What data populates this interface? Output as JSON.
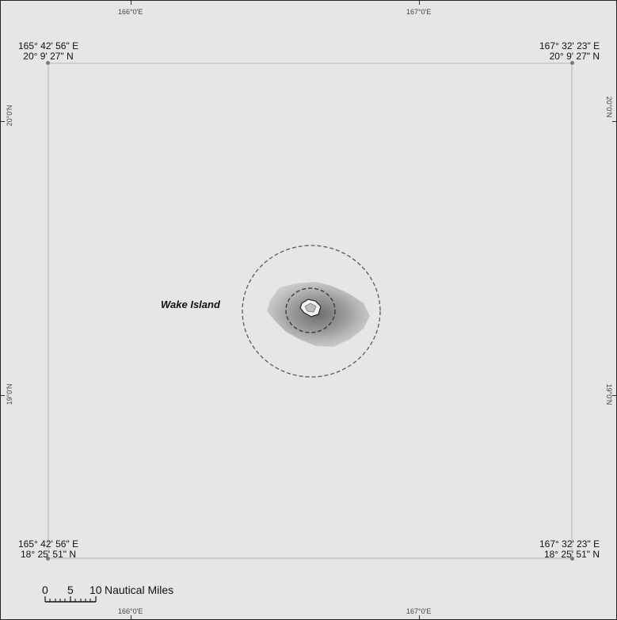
{
  "top_ticks": [
    {
      "label": "166°0'E"
    },
    {
      "label": "167°0'E"
    }
  ],
  "bottom_ticks": [
    {
      "label": "166°0'E"
    },
    {
      "label": "167°0'E"
    }
  ],
  "left_ticks": [
    {
      "label": "20°0'N"
    },
    {
      "label": "19°0'N"
    }
  ],
  "right_ticks": [
    {
      "label": "20°0'N"
    },
    {
      "label": "19°0'N"
    }
  ],
  "corners": {
    "top_left": {
      "lon": "165° 42' 56\" E",
      "lat": "20° 9' 27\" N"
    },
    "top_right": {
      "lon": "167° 32' 23\" E",
      "lat": "20° 9' 27\" N"
    },
    "bottom_left": {
      "lon": "165° 42' 56\" E",
      "lat": "18° 25' 51\" N"
    },
    "bottom_right": {
      "lon": "167° 32' 23\" E",
      "lat": "18° 25' 51\" N"
    }
  },
  "features": {
    "island_label": "Wake Island"
  },
  "scale": {
    "zero": "0",
    "five": "5",
    "ten": "10",
    "unit": "Nautical Miles"
  }
}
